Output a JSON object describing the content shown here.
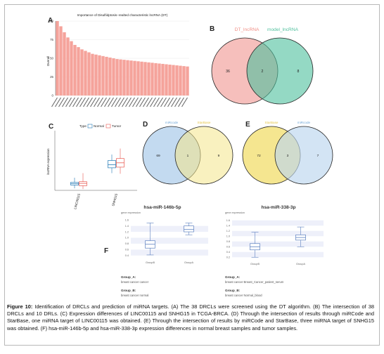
{
  "panels": {
    "a": {
      "letter": "A"
    },
    "b": {
      "letter": "B"
    },
    "c": {
      "letter": "C"
    },
    "d": {
      "letter": "D"
    },
    "e": {
      "letter": "E"
    },
    "f": {
      "letter": "F"
    }
  },
  "colors": {
    "bar": "#f5a39b",
    "venn_pink": "#f5bcb8",
    "venn_green": "#4dbf9c",
    "venn_blue": "#bcd6ee",
    "venn_yellow": "#f4e58a",
    "box_normal": "#1f77b4",
    "box_tumor": "#e8584f"
  },
  "chart_data": [
    {
      "type": "bar",
      "title": "Importance of Disulfidptosis−realted characteristic lncRNA (DT)",
      "ylabel": "Overall",
      "ylim": [
        0,
        100
      ],
      "yticks": [
        "0",
        "25",
        "50",
        "75",
        "100"
      ],
      "categories": [
        "c1",
        "c2",
        "c3",
        "c4",
        "c5",
        "c6",
        "c7",
        "c8",
        "c9",
        "c10",
        "c11",
        "c12",
        "c13",
        "c14",
        "c15",
        "c16",
        "c17",
        "c18",
        "c19",
        "c20",
        "c21",
        "c22",
        "c23",
        "c24",
        "c25",
        "c26",
        "c27",
        "c28",
        "c29",
        "c30",
        "c31",
        "c32",
        "c33",
        "c34",
        "c35",
        "c36",
        "c37",
        "c38"
      ],
      "values": [
        100,
        93,
        85,
        78,
        73,
        68,
        65,
        62,
        60,
        58,
        56,
        55,
        54,
        53,
        52,
        51,
        50,
        49,
        48.5,
        48,
        47.5,
        47,
        46.5,
        46,
        45.5,
        45,
        44.5,
        44,
        43.5,
        43,
        42.5,
        42,
        41.5,
        41,
        40.5,
        40,
        39.5,
        39
      ]
    },
    {
      "type": "venn",
      "sets": [
        "DT_lncRNA",
        "model_lncRNA"
      ],
      "left_only": "36",
      "overlap": "2",
      "right_only": "8"
    },
    {
      "type": "box",
      "legend_title": "Type",
      "series": [
        {
          "name": "Normal"
        },
        {
          "name": "Tumor"
        }
      ],
      "ylabel": "lncRNA expression",
      "categories": [
        "LINC00115",
        "SNHG15"
      ],
      "ylim": [
        0,
        9
      ],
      "boxes": [
        {
          "category": "LINC00115",
          "series": "Normal",
          "q1": 0.8,
          "median": 1.0,
          "q3": 1.2,
          "lo": 0.3,
          "hi": 1.9
        },
        {
          "category": "LINC00115",
          "series": "Tumor",
          "q1": 0.7,
          "median": 1.05,
          "q3": 1.3,
          "lo": 0.2,
          "hi": 2.6
        },
        {
          "category": "SNHG15",
          "series": "Normal",
          "q1": 3.4,
          "median": 3.85,
          "q3": 4.5,
          "lo": 2.6,
          "hi": 5.4
        },
        {
          "category": "SNHG15",
          "series": "Tumor",
          "q1": 3.5,
          "median": 4.15,
          "q3": 4.8,
          "lo": 2.5,
          "hi": 6.3
        }
      ]
    },
    {
      "type": "venn",
      "sets": [
        "miRcode",
        "StarBase"
      ],
      "left_only": "69",
      "overlap": "1",
      "right_only": "9"
    },
    {
      "type": "venn",
      "sets": [
        "StarBase",
        "miRcode"
      ],
      "left_only": "72",
      "overlap": "3",
      "right_only": "7"
    },
    {
      "type": "box",
      "title": "hsa-miR-146b-5p",
      "ylabel": "gene expression",
      "yticks": [
        "0.4",
        "0.6",
        "0.8",
        "1.0",
        "1.2",
        "1.4",
        "1.6"
      ],
      "ylim": [
        0.3,
        1.7
      ],
      "categories": [
        "GroupB",
        "GroupA"
      ],
      "boxes": [
        {
          "category": "GroupB",
          "q1": 0.65,
          "median": 0.78,
          "q3": 0.9,
          "lo": 0.42,
          "hi": 1.5
        },
        {
          "category": "GroupA",
          "q1": 1.2,
          "median": 1.28,
          "q3": 1.4,
          "lo": 1.1,
          "hi": 1.5
        }
      ],
      "notes": [
        {
          "label": "Group_A:",
          "text": "breast cancer cancer"
        },
        {
          "label": "Group_B:",
          "text": "breast cancer normal"
        }
      ]
    },
    {
      "type": "box",
      "title": "hsa-miR-338-3p",
      "ylabel": "gene expression",
      "yticks": [
        "0.2",
        "0.4",
        "0.6",
        "0.8",
        "1.0",
        "1.2",
        "1.4",
        "1.6"
      ],
      "ylim": [
        0.1,
        1.7
      ],
      "categories": [
        "GroupB",
        "GroupA"
      ],
      "boxes": [
        {
          "category": "GroupB",
          "q1": 0.48,
          "median": 0.6,
          "q3": 0.72,
          "lo": 0.2,
          "hi": 1.15
        },
        {
          "category": "GroupA",
          "q1": 0.85,
          "median": 0.95,
          "q3": 1.05,
          "lo": 0.6,
          "hi": 1.35
        }
      ],
      "notes": [
        {
          "label": "Group_A:",
          "text": "breast cancer Breast_Cancer_patient_serum"
        },
        {
          "label": "Group_B:",
          "text": "breast cancer Normal_blood"
        }
      ]
    }
  ],
  "caption": {
    "label": "Figure 10:",
    "text": " Identification of DRCLs and prediction of miRNA targets. (A) The 38 DRCLs were screened using the DT algorithm. (B) The intersection of 38 DRCLs and 10 DRLs. (C) Expression differences of LINC00115 and SNHG15 in TCGA-BRCA. (D) Through the intersection of results through miRCode and StarBase, one miRNA target of LINC00115 was obtained. (E) Through the intersection of results by miRCode and StarBase, three miRNA target of SNHG15 was obtained. (F) hsa-miR-146b-5p and hsa-miR-338-3p expression differences in normal breast samples and tumor samples."
  }
}
